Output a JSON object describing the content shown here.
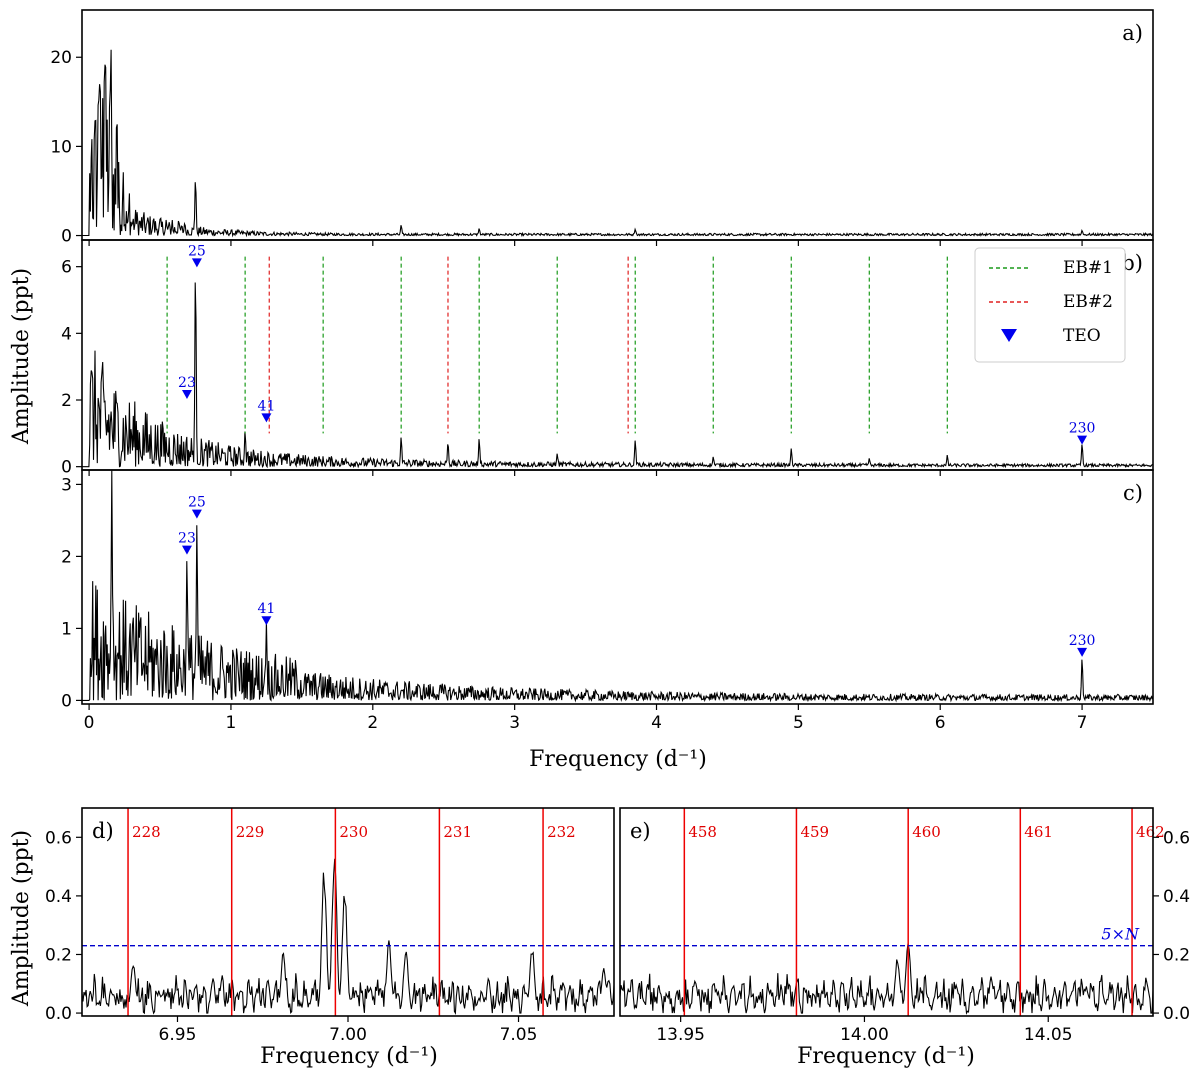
{
  "ylabel": "Amplitude (ppt)",
  "xlabel": "Frequency (d⁻¹)",
  "chart_data": [
    {
      "id": "a",
      "panel_label": "a)",
      "type": "line",
      "xlim": [
        -0.05,
        7.5
      ],
      "ylim": [
        -0.5,
        25.3
      ],
      "yticks": [
        0,
        10,
        20
      ],
      "xticks": [
        0,
        1,
        2,
        3,
        4,
        5,
        6,
        7
      ],
      "peaks": [
        [
          0.75,
          6.5
        ],
        [
          2.2,
          1.2
        ],
        [
          2.75,
          0.8
        ],
        [
          3.85,
          0.7
        ],
        [
          7.0,
          0.6
        ]
      ]
    },
    {
      "id": "b",
      "panel_label": "b)",
      "type": "line",
      "xlim": [
        -0.05,
        7.5
      ],
      "ylim": [
        -0.1,
        6.8
      ],
      "yticks": [
        0,
        2,
        4,
        6
      ],
      "xticks": [
        0,
        1,
        2,
        3,
        4,
        5,
        6,
        7
      ],
      "eb1_lines": [
        0.55,
        1.1,
        1.65,
        2.2,
        2.75,
        3.3,
        3.85,
        4.4,
        4.95,
        5.5,
        6.05
      ],
      "eb2_lines": [
        1.27,
        2.53,
        3.8
      ],
      "peaks": [
        [
          0.75,
          6.0
        ],
        [
          1.1,
          1.1
        ],
        [
          2.2,
          0.9
        ],
        [
          2.53,
          0.75
        ],
        [
          2.75,
          0.85
        ],
        [
          3.3,
          0.4
        ],
        [
          3.85,
          0.8
        ],
        [
          4.4,
          0.3
        ],
        [
          4.95,
          0.55
        ],
        [
          5.5,
          0.25
        ],
        [
          6.05,
          0.35
        ],
        [
          7.0,
          0.7
        ]
      ],
      "teo": [
        {
          "x": 0.69,
          "y": 2.15,
          "label": "23"
        },
        {
          "x": 0.76,
          "y": 6.1,
          "label": "25"
        },
        {
          "x": 1.25,
          "y": 1.45,
          "label": "41"
        },
        {
          "x": 7.0,
          "y": 0.78,
          "label": "230"
        }
      ],
      "legend": {
        "position": "top-right",
        "entries": [
          "EB#1",
          "EB#2",
          "TEO"
        ]
      }
    },
    {
      "id": "c",
      "panel_label": "c)",
      "type": "line",
      "xlim": [
        -0.05,
        7.5
      ],
      "ylim": [
        -0.05,
        3.2
      ],
      "yticks": [
        0,
        1,
        2,
        3
      ],
      "xticks": [
        0,
        1,
        2,
        3,
        4,
        5,
        6,
        7
      ],
      "peaks": [
        [
          0.76,
          2.5
        ],
        [
          0.69,
          2.0
        ],
        [
          1.25,
          1.1
        ],
        [
          7.0,
          0.6
        ],
        [
          0.16,
          3.2
        ]
      ],
      "teo": [
        {
          "x": 0.69,
          "y": 2.08,
          "label": "23"
        },
        {
          "x": 0.76,
          "y": 2.58,
          "label": "25"
        },
        {
          "x": 1.25,
          "y": 1.1,
          "label": "41"
        },
        {
          "x": 7.0,
          "y": 0.66,
          "label": "230"
        }
      ]
    },
    {
      "id": "d",
      "panel_label": "d)",
      "type": "line",
      "xlim": [
        6.922,
        7.078
      ],
      "ylim": [
        -0.01,
        0.7
      ],
      "yticks": [
        0.0,
        0.2,
        0.4,
        0.6
      ],
      "xticks": [
        6.95,
        7.0,
        7.05
      ],
      "harmonics": [
        {
          "x": 6.9355,
          "label": "228"
        },
        {
          "x": 6.9659,
          "label": "229"
        },
        {
          "x": 6.9963,
          "label": "230"
        },
        {
          "x": 7.0268,
          "label": "231"
        },
        {
          "x": 7.0572,
          "label": "232"
        }
      ],
      "noise_level": 0.23,
      "peaks": [
        [
          6.996,
          0.58
        ],
        [
          6.993,
          0.5
        ],
        [
          6.999,
          0.45
        ],
        [
          6.937,
          0.18
        ],
        [
          6.981,
          0.21
        ],
        [
          7.012,
          0.25
        ],
        [
          7.017,
          0.22
        ],
        [
          7.054,
          0.23
        ],
        [
          7.075,
          0.16
        ]
      ]
    },
    {
      "id": "e",
      "panel_label": "e)",
      "type": "line",
      "xlim": [
        13.9335,
        14.0785
      ],
      "ylim": [
        -0.01,
        0.7
      ],
      "yticks": [
        0.0,
        0.2,
        0.4,
        0.6
      ],
      "xticks": [
        13.95,
        14.0,
        14.05
      ],
      "harmonics": [
        {
          "x": 13.951,
          "label": "458"
        },
        {
          "x": 13.9815,
          "label": "459"
        },
        {
          "x": 14.0119,
          "label": "460"
        },
        {
          "x": 14.0424,
          "label": "461"
        },
        {
          "x": 14.0728,
          "label": "462"
        }
      ],
      "noise_level": 0.23,
      "noise_text": "5×N",
      "peaks": [
        [
          14.0119,
          0.27
        ],
        [
          14.009,
          0.2
        ],
        [
          13.954,
          0.12
        ],
        [
          14.025,
          0.1
        ],
        [
          14.06,
          0.09
        ]
      ]
    }
  ],
  "colors": {
    "eb1": "#1a9a1a",
    "eb2": "#e02020",
    "teo": "#0000ee",
    "harmonic": "#ee0000",
    "noise": "#0000cc",
    "spectrum": "#000000"
  }
}
